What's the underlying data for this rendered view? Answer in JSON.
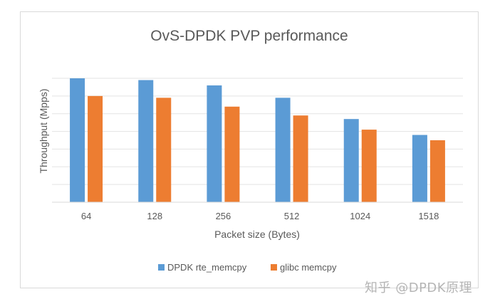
{
  "chart_data": {
    "type": "bar",
    "title": "OvS-DPDK PVP performance",
    "xlabel": "Packet size (Bytes)",
    "ylabel": "Throughput (Mpps)",
    "categories": [
      "64",
      "128",
      "256",
      "512",
      "1024",
      "1518"
    ],
    "series": [
      {
        "name": "DPDK rte_memcpy",
        "color": "#5b9bd5",
        "values": [
          7.0,
          6.9,
          6.6,
          5.9,
          4.7,
          3.8
        ]
      },
      {
        "name": "glibc memcpy",
        "color": "#ed7d31",
        "values": [
          6.0,
          5.9,
          5.4,
          4.9,
          4.1,
          3.5
        ]
      }
    ],
    "ylim": [
      0,
      7
    ],
    "y_ticks_labeled": false,
    "grid": true,
    "legend_position": "bottom"
  },
  "watermark": "知乎 @DPDK原理"
}
